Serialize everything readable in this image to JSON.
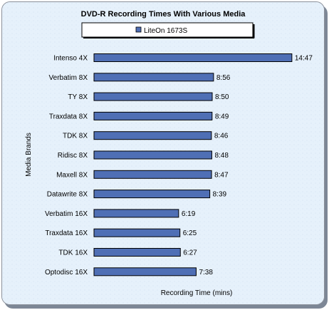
{
  "chart_data": {
    "type": "bar",
    "orientation": "horizontal",
    "title": "DVD-R Recording Times With Various Media",
    "xlabel": "Recording Time (mins)",
    "ylabel": "Media Brands",
    "legend": {
      "position": "top",
      "entries": [
        "LiteOn 1673S"
      ]
    },
    "categories": [
      "Intenso 4X",
      "Verbatim 8X",
      "TY 8X",
      "Traxdata 8X",
      "TDK 8X",
      "Ridisc 8X",
      "Maxell 8X",
      "Datawrite 8X",
      "Verbatim 16X",
      "Traxdata 16X",
      "TDK 16X",
      "Optodisc 16X"
    ],
    "series": [
      {
        "name": "LiteOn 1673S",
        "values": [
          14.78,
          8.93,
          8.83,
          8.82,
          8.77,
          8.8,
          8.78,
          8.65,
          6.32,
          6.42,
          6.45,
          7.63
        ],
        "labels": [
          "14:47",
          "8:56",
          "8:50",
          "8:49",
          "8:46",
          "8:48",
          "8:47",
          "8:39",
          "6:19",
          "6:25",
          "6:27",
          "7:38"
        ]
      }
    ],
    "xlim": [
      0,
      15
    ],
    "grid": false,
    "colors": {
      "bar": "#4f6fb5",
      "bar_edge": "#000000",
      "background": "#e6f1fb",
      "frame_shadow": "#7d8796"
    }
  }
}
